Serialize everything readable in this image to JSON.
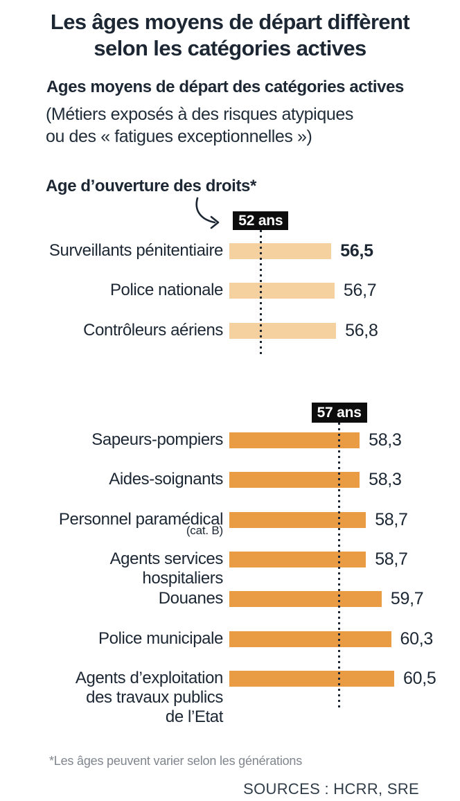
{
  "chart_data": {
    "type": "bar",
    "orientation": "horizontal",
    "unit": "ans (years of age)",
    "bar_scale_origin_age": 50,
    "grid": false,
    "title": "Les âges moyens de départ diffèrent\nselon les catégories actives",
    "subtitle": "Ages moyens de départ des catégories actives",
    "subtitle_note": "(Métiers exposés à des risques atypiques\nou des « fatigues exceptionnelles »)",
    "annotation": "Age d’ouverture des droits*",
    "footnote": "*Les âges peuvent varier selon les générations",
    "source": "SOURCES : HCRR, SRE",
    "sections": [
      {
        "threshold_label": "52 ans",
        "threshold_age": 52,
        "bar_color": "#f5d1a0",
        "rows": [
          {
            "category": "Surveillants pénitentiaire",
            "value": 56.5,
            "value_label": "56,5",
            "value_bold": true
          },
          {
            "category": "Police nationale",
            "value": 56.7,
            "value_label": "56,7",
            "value_bold": false
          },
          {
            "category": "Contrôleurs aériens",
            "value": 56.8,
            "value_label": "56,8",
            "value_bold": false
          }
        ]
      },
      {
        "threshold_label": "57 ans",
        "threshold_age": 57,
        "bar_color": "#e99c43",
        "rows": [
          {
            "category": "Sapeurs-pompiers",
            "value": 58.3,
            "value_label": "58,3",
            "value_bold": false
          },
          {
            "category": "Aides-soignants",
            "value": 58.3,
            "value_label": "58,3",
            "value_bold": false
          },
          {
            "category": "Personnel paramédical",
            "sub_label": "(cat. B)",
            "value": 58.7,
            "value_label": "58,7",
            "value_bold": false
          },
          {
            "category": "Agents services\nhospitaliers",
            "value": 58.7,
            "value_label": "58,7",
            "value_bold": false
          },
          {
            "category": "Douanes",
            "value": 59.7,
            "value_label": "59,7",
            "value_bold": false
          },
          {
            "category": "Police municipale",
            "value": 60.3,
            "value_label": "60,3",
            "value_bold": false
          },
          {
            "category": "Agents d’exploitation\ndes travaux publics\nde l’Etat",
            "value": 60.5,
            "value_label": "60,5",
            "value_bold": false
          }
        ]
      }
    ],
    "colors": {
      "text": "#1c2733",
      "badge_bg": "#0d0d0d",
      "badge_text": "#ffffff",
      "bar_light": "#f5d1a0",
      "bar_orange": "#e99c43",
      "footnote": "#7f868d",
      "source": "#303c47"
    }
  }
}
